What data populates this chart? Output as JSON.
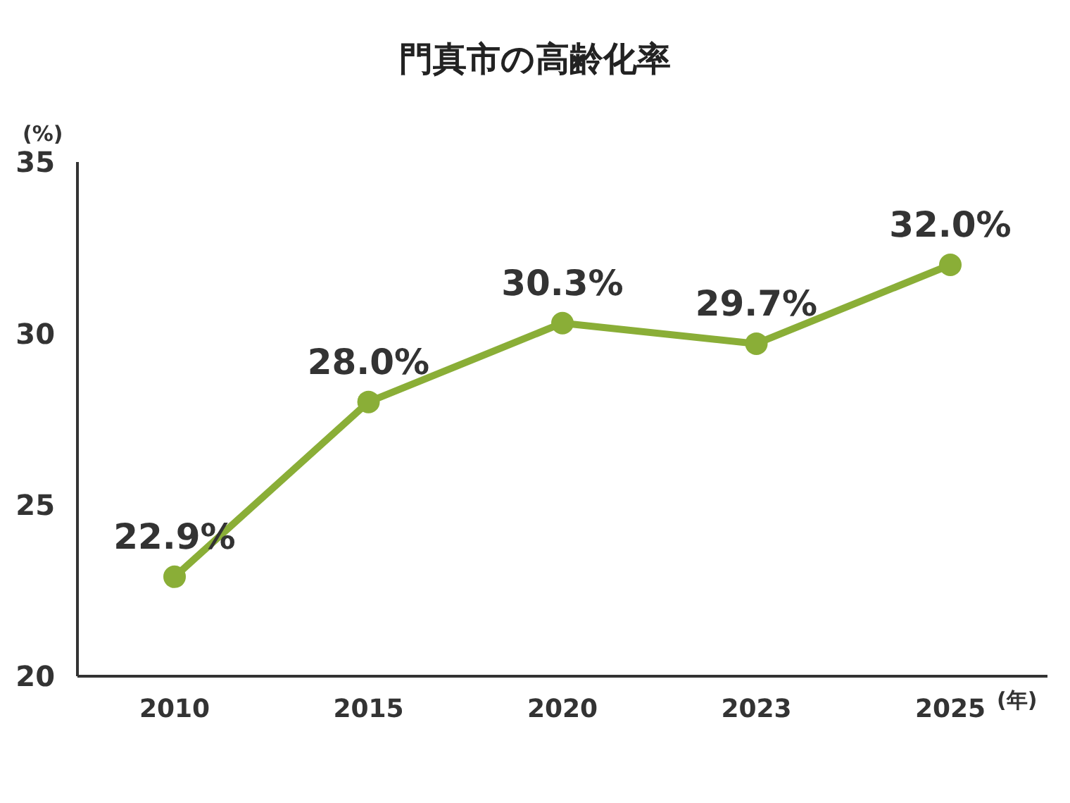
{
  "chart_data": {
    "type": "line",
    "title": "門真市の高齢化率",
    "ylabel": "(%)",
    "xlabel": "(年)",
    "categories": [
      "2010",
      "2015",
      "2020",
      "2023",
      "2025"
    ],
    "series": [
      {
        "color": "#8aae37",
        "values": [
          22.9,
          28.0,
          30.3,
          29.7,
          32.0
        ],
        "value_labels": [
          "22.9%",
          "28.0%",
          "30.3%",
          "29.7%",
          "32.0%"
        ]
      }
    ],
    "ylim": [
      20,
      35
    ],
    "yticks": [
      20,
      25,
      30,
      35
    ],
    "grid": false,
    "legend": false,
    "marker": "circle",
    "line_style": "solid"
  }
}
